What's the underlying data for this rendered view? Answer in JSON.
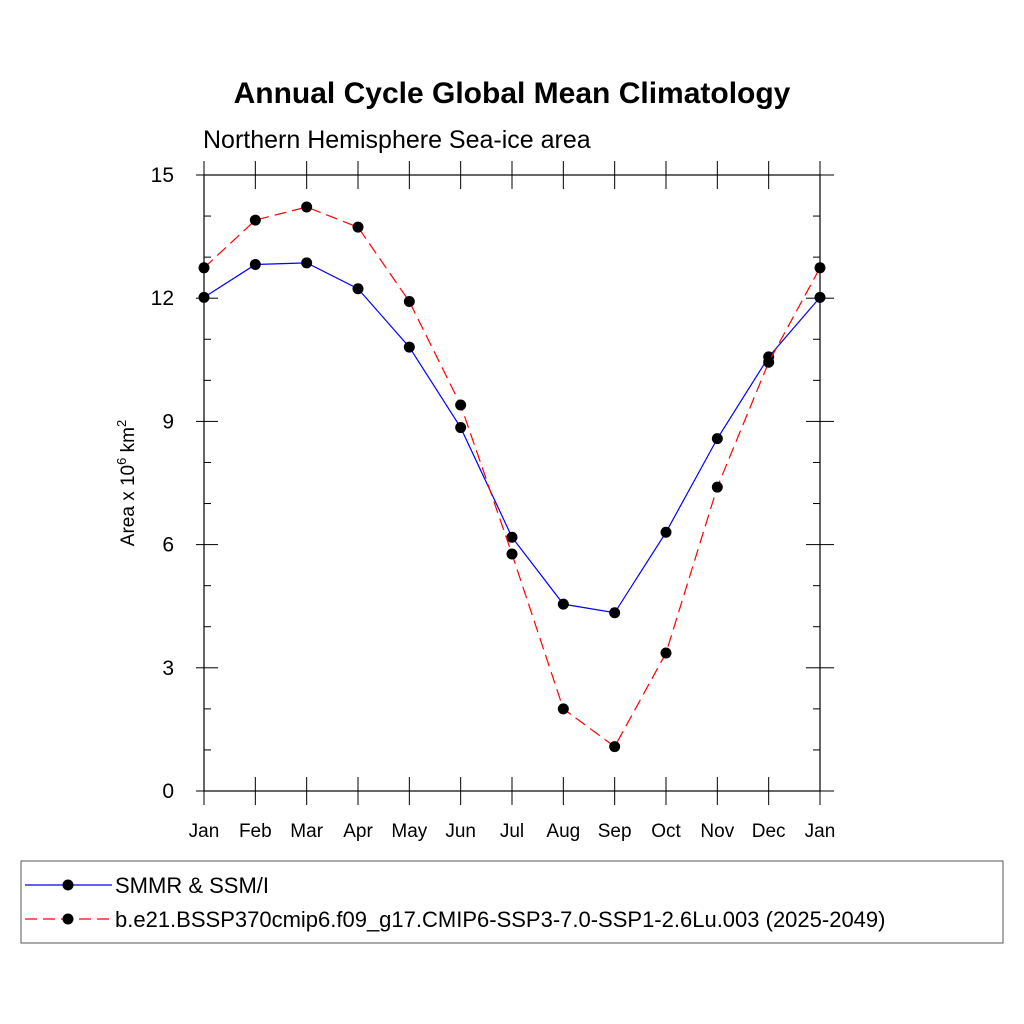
{
  "chart_data": {
    "type": "line",
    "title": "Annual Cycle Global Mean Climatology",
    "subtitle": "Northern Hemisphere Sea-ice area",
    "ylabel_base": "Area x 10",
    "ylabel_exp": "6",
    "ylabel_unit": " km",
    "ylabel_unit_exp": "2",
    "xlabel": "",
    "categories": [
      "Jan",
      "Feb",
      "Mar",
      "Apr",
      "May",
      "Jun",
      "Jul",
      "Aug",
      "Sep",
      "Oct",
      "Nov",
      "Dec",
      "Jan"
    ],
    "ylim": [
      0,
      15
    ],
    "yticks": [
      0,
      3,
      6,
      9,
      12,
      15
    ],
    "grid": false,
    "legend_position": "bottom",
    "series": [
      {
        "name": "SMMR & SSM/I",
        "color": "#0000ff",
        "dash": "solid",
        "values": [
          12.02,
          12.82,
          12.86,
          12.23,
          10.81,
          8.85,
          6.18,
          4.55,
          4.34,
          6.3,
          8.58,
          10.57,
          12.02
        ]
      },
      {
        "name": "b.e21.BSSP370cmip6.f09_g17.CMIP6-SSP3-7.0-SSP1-2.6Lu.003 (2025-2049)",
        "color": "#ff0000",
        "dash": "dashed",
        "values": [
          12.74,
          13.9,
          14.22,
          13.73,
          11.92,
          9.4,
          5.77,
          2.0,
          1.08,
          3.36,
          7.4,
          10.44,
          12.74
        ]
      }
    ]
  }
}
